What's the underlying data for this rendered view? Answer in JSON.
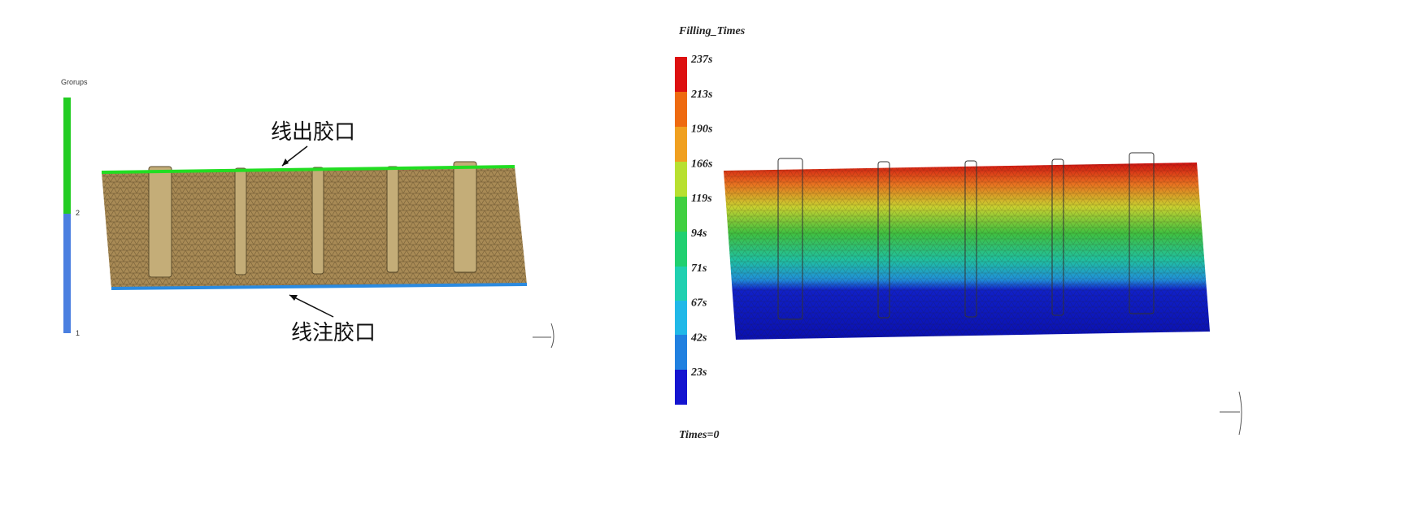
{
  "left_panel": {
    "legend_title": "Grorups",
    "legend_labels": [
      "2",
      "1"
    ],
    "annotations": [
      "线出胶口",
      "线注胶口"
    ]
  },
  "right_panel": {
    "legend_title": "Filling_Times",
    "legend_labels": [
      "237s",
      "213s",
      "190s",
      "166s",
      "119s",
      "94s",
      "71s",
      "67s",
      "42s",
      "23s"
    ],
    "footer": "Times=0"
  }
}
